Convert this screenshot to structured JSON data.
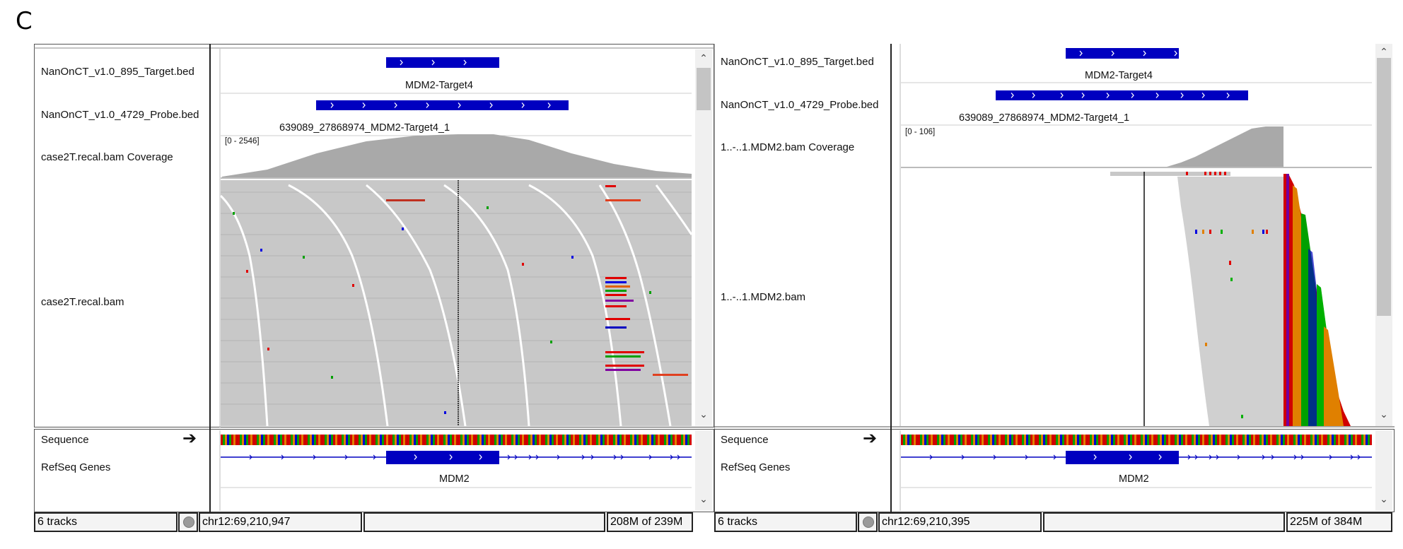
{
  "panel_letter": "C",
  "panels": [
    {
      "tracks": {
        "target_bed": "NanOnCT_v1.0_895_Target.bed",
        "probe_bed": "NanOnCT_v1.0_4729_Probe.bed",
        "coverage": "case2T.recal.bam Coverage",
        "bam": "case2T.recal.bam",
        "sequence": "Sequence",
        "refseq": "RefSeq Genes"
      },
      "features": {
        "target": "MDM2-Target4",
        "probe": "639089_27868974_MDM2-Target4_1",
        "gene": "MDM2"
      },
      "coverage_range": "[0 - 2546]",
      "status": {
        "tracks": "6 tracks",
        "locus": "chr12:69,210,947",
        "message": "",
        "memory": "208M of 239M"
      }
    },
    {
      "tracks": {
        "target_bed": "NanOnCT_v1.0_895_Target.bed",
        "probe_bed": "NanOnCT_v1.0_4729_Probe.bed",
        "coverage": "1..-..1.MDM2.bam Coverage",
        "bam": "1..-..1.MDM2.bam",
        "sequence": "Sequence",
        "refseq": "RefSeq Genes"
      },
      "features": {
        "target": "MDM2-Target4",
        "probe": "639089_27868974_MDM2-Target4_1",
        "gene": "MDM2"
      },
      "coverage_range": "[0 - 106]",
      "status": {
        "tracks": "6 tracks",
        "locus": "chr12:69,210,395",
        "message": "",
        "memory": "225M of 384M"
      }
    }
  ],
  "icons": {
    "strand": "right-arrow-icon",
    "scroll_up": "chevron-up-icon",
    "scroll_down": "chevron-down-icon",
    "status": "gray-circle-icon"
  },
  "colors": {
    "feature_blue": "#0000c0",
    "coverage_gray": "#a9a9a9",
    "read_gray": "#c8c8c8",
    "mismatch_red": "#e00000",
    "mismatch_green": "#00b000",
    "mismatch_blue": "#0000e0",
    "mismatch_orange": "#d07000"
  }
}
